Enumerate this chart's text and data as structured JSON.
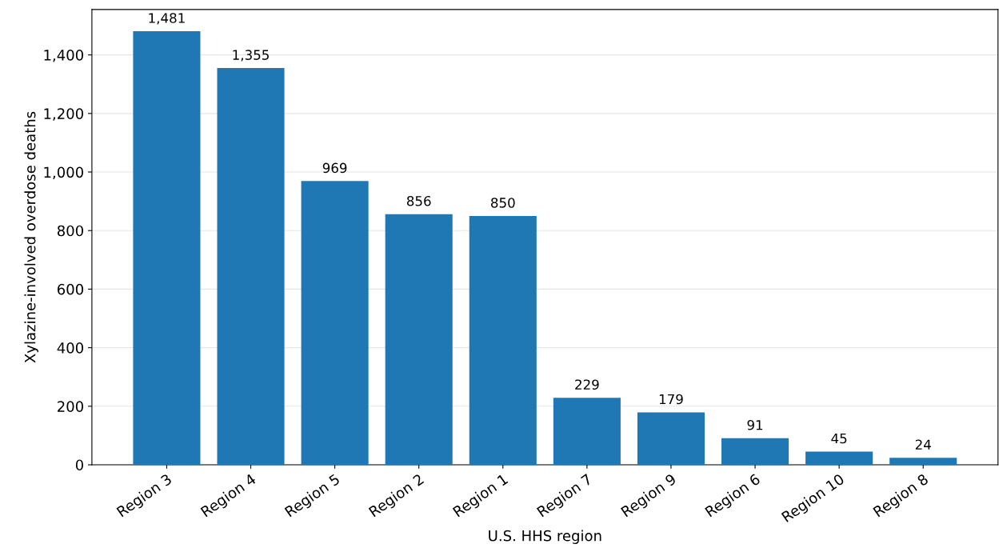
{
  "chart_data": {
    "type": "bar",
    "xlabel": "U.S. HHS region",
    "ylabel": "Xylazine-involved overdose deaths",
    "categories": [
      "Region 3",
      "Region 4",
      "Region 5",
      "Region 2",
      "Region 1",
      "Region 7",
      "Region 9",
      "Region 6",
      "Region 10",
      "Region 8"
    ],
    "values": [
      1481,
      1355,
      969,
      856,
      850,
      229,
      179,
      91,
      45,
      24
    ],
    "value_labels": [
      "1,481",
      "1,355",
      "969",
      "856",
      "850",
      "229",
      "179",
      "91",
      "45",
      "24"
    ],
    "color": "#1f77b4",
    "ylim": [
      0,
      1555
    ],
    "yticks": [
      0,
      {
        "value": 200,
        "label": "200"
      },
      {
        "value": 400,
        "label": "400"
      },
      {
        "value": 600,
        "label": "600"
      },
      {
        "value": 800,
        "label": "800"
      },
      {
        "value": 1000,
        "label": "1,000"
      },
      {
        "value": 1200,
        "label": "1,200"
      },
      {
        "value": 1400,
        "label": "1,400"
      }
    ],
    "grid": "y",
    "legend": false
  }
}
